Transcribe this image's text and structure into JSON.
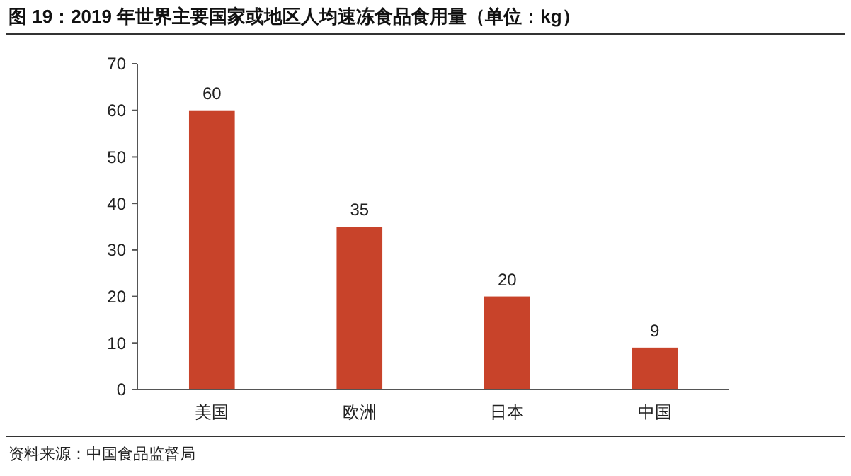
{
  "chart_data": {
    "type": "bar",
    "title": "图 19：2019 年世界主要国家或地区人均速冻食品食用量（单位：kg）",
    "categories": [
      "美国",
      "欧洲",
      "日本",
      "中国"
    ],
    "values": [
      60,
      35,
      20,
      9
    ],
    "color": "#c8432a",
    "ylim": [
      0,
      70
    ],
    "yticks": [
      0,
      10,
      20,
      30,
      40,
      50,
      60,
      70
    ],
    "grid": false,
    "data_labels": true,
    "annotations": [
      "资料来源：中国食品监督局"
    ]
  }
}
